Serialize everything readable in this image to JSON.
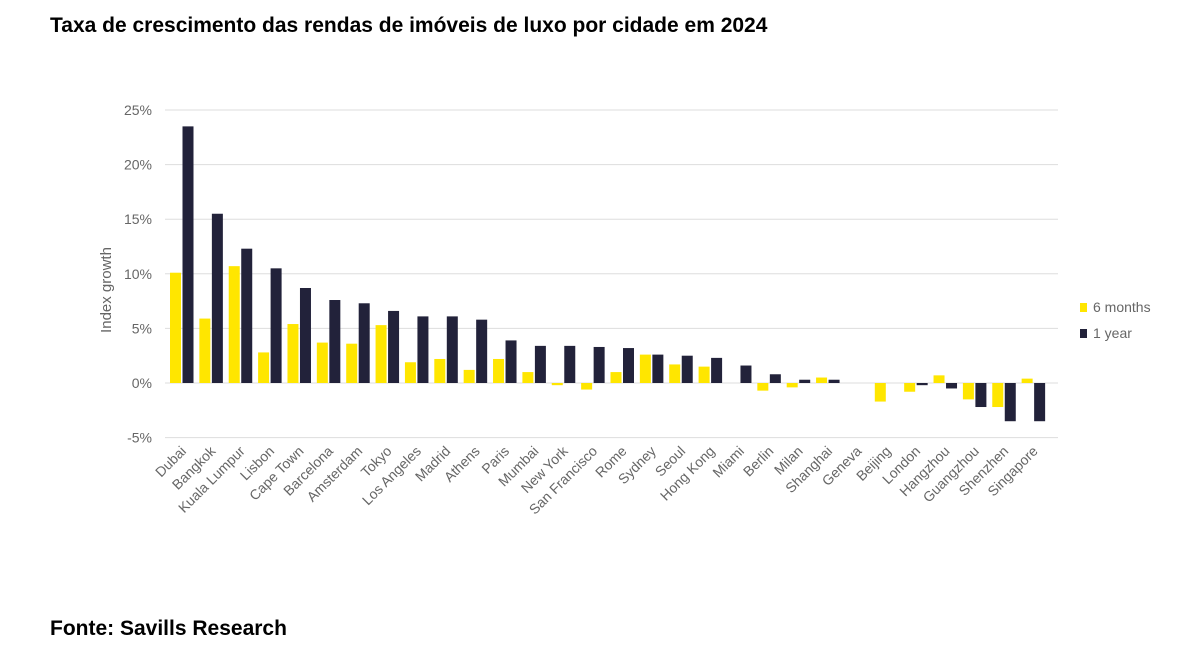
{
  "page": {
    "title": "Taxa de crescimento das rendas de imóveis de luxo por cidade em 2024",
    "source": "Fonte: Savills Research"
  },
  "colors": {
    "six_months": "#FFE600",
    "one_year": "#22223A",
    "grid": "#dddddd",
    "text": "#666666"
  },
  "chart_data": {
    "type": "bar",
    "title": "",
    "xlabel": "",
    "ylabel": "Index growth",
    "ylim": [
      -5,
      25
    ],
    "yticks": [
      -5,
      0,
      5,
      10,
      15,
      20,
      25
    ],
    "ytick_labels": [
      "-5%",
      "0%",
      "5%",
      "10%",
      "15%",
      "20%",
      "25%"
    ],
    "grid": true,
    "legend_position": "right",
    "categories": [
      "Dubai",
      "Bangkok",
      "Kuala Lumpur",
      "Lisbon",
      "Cape Town",
      "Barcelona",
      "Amsterdam",
      "Tokyo",
      "Los Angeles",
      "Madrid",
      "Athens",
      "Paris",
      "Mumbai",
      "New York",
      "San Francisco",
      "Rome",
      "Sydney",
      "Seoul",
      "Hong Kong",
      "Miami",
      "Berlin",
      "Milan",
      "Shanghai",
      "Geneva",
      "Beijing",
      "London",
      "Hangzhou",
      "Guangzhou",
      "Shenzhen",
      "Singapore"
    ],
    "series": [
      {
        "name": "6 months",
        "values": [
          10.1,
          5.9,
          10.7,
          2.8,
          5.4,
          3.7,
          3.6,
          5.3,
          1.9,
          2.2,
          1.2,
          2.2,
          1.0,
          -0.2,
          -0.6,
          1.0,
          2.6,
          1.7,
          1.5,
          0.0,
          -0.7,
          -0.4,
          0.5,
          0.0,
          -1.7,
          -0.8,
          0.7,
          -1.5,
          -2.2,
          0.4
        ]
      },
      {
        "name": "1 year",
        "values": [
          23.5,
          15.5,
          12.3,
          10.5,
          8.7,
          7.6,
          7.3,
          6.6,
          6.1,
          6.1,
          5.8,
          3.9,
          3.4,
          3.4,
          3.3,
          3.2,
          2.6,
          2.5,
          2.3,
          1.6,
          0.8,
          0.3,
          0.3,
          0.0,
          0.0,
          -0.2,
          -0.5,
          -2.2,
          -3.5,
          -3.5
        ]
      }
    ]
  }
}
